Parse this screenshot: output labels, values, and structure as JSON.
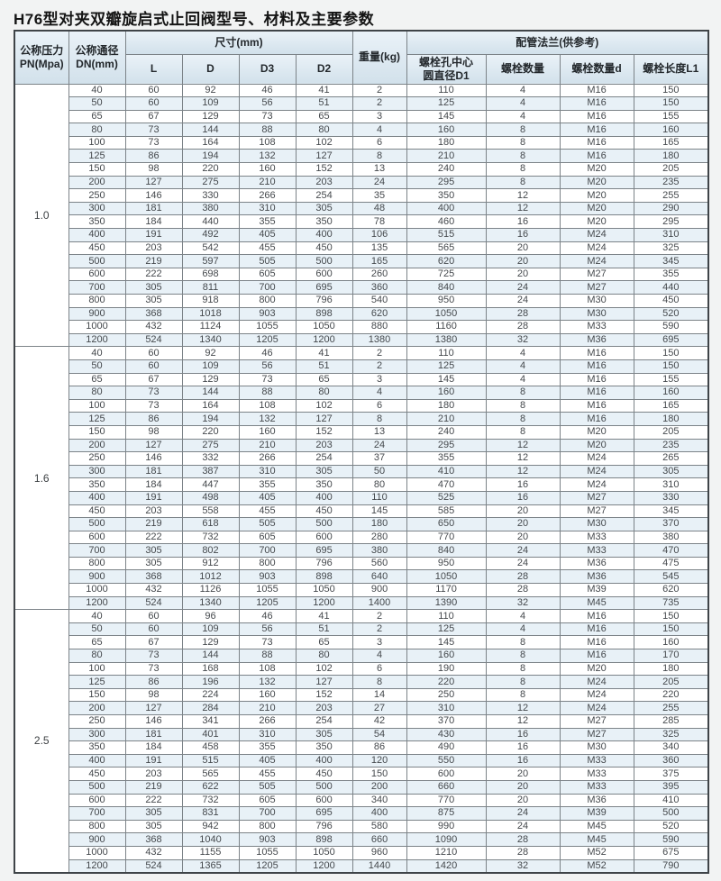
{
  "title": "H76型对夹双瓣旋启式止回阀型号、材料及主要参数",
  "table": {
    "headers": {
      "pn": "公称压力\nPN(Mpa)",
      "dn": "公称通径\nDN(mm)",
      "size_group": "尺寸(mm)",
      "l": "L",
      "d": "D",
      "d3": "D3",
      "d2": "D2",
      "weight": "重量(kg)",
      "flange_group": "配管法兰(供参考)",
      "d1": "螺栓孔中心\n圆直径D1",
      "bolt_count": "螺栓数量",
      "bolt_size": "螺栓数量d",
      "bolt_length": "螺栓长度L1"
    },
    "groups": [
      {
        "pn": "1.0",
        "rows": [
          [
            40,
            60,
            92,
            46,
            41,
            2,
            110,
            4,
            "M16",
            150
          ],
          [
            50,
            60,
            109,
            56,
            51,
            2,
            125,
            4,
            "M16",
            150
          ],
          [
            65,
            67,
            129,
            73,
            65,
            3,
            145,
            4,
            "M16",
            155
          ],
          [
            80,
            73,
            144,
            88,
            80,
            4,
            160,
            8,
            "M16",
            160
          ],
          [
            100,
            73,
            164,
            108,
            102,
            6,
            180,
            8,
            "M16",
            165
          ],
          [
            125,
            86,
            194,
            132,
            127,
            8,
            210,
            8,
            "M16",
            180
          ],
          [
            150,
            98,
            220,
            160,
            152,
            13,
            240,
            8,
            "M20",
            205
          ],
          [
            200,
            127,
            275,
            210,
            203,
            24,
            295,
            8,
            "M20",
            235
          ],
          [
            250,
            146,
            330,
            266,
            254,
            35,
            350,
            12,
            "M20",
            255
          ],
          [
            300,
            181,
            380,
            310,
            305,
            48,
            400,
            12,
            "M20",
            290
          ],
          [
            350,
            184,
            440,
            355,
            350,
            78,
            460,
            16,
            "M20",
            295
          ],
          [
            400,
            191,
            492,
            405,
            400,
            106,
            515,
            16,
            "M24",
            310
          ],
          [
            450,
            203,
            542,
            455,
            450,
            135,
            565,
            20,
            "M24",
            325
          ],
          [
            500,
            219,
            597,
            505,
            500,
            165,
            620,
            20,
            "M24",
            345
          ],
          [
            600,
            222,
            698,
            605,
            600,
            260,
            725,
            20,
            "M27",
            355
          ],
          [
            700,
            305,
            811,
            700,
            695,
            360,
            840,
            24,
            "M27",
            440
          ],
          [
            800,
            305,
            918,
            800,
            796,
            540,
            950,
            24,
            "M30",
            450
          ],
          [
            900,
            368,
            1018,
            903,
            898,
            620,
            1050,
            28,
            "M30",
            520
          ],
          [
            1000,
            432,
            1124,
            1055,
            1050,
            880,
            1160,
            28,
            "M33",
            590
          ],
          [
            1200,
            524,
            1340,
            1205,
            1200,
            1380,
            1380,
            32,
            "M36",
            695
          ]
        ]
      },
      {
        "pn": "1.6",
        "rows": [
          [
            40,
            60,
            92,
            46,
            41,
            2,
            110,
            4,
            "M16",
            150
          ],
          [
            50,
            60,
            109,
            56,
            51,
            2,
            125,
            4,
            "M16",
            150
          ],
          [
            65,
            67,
            129,
            73,
            65,
            3,
            145,
            4,
            "M16",
            155
          ],
          [
            80,
            73,
            144,
            88,
            80,
            4,
            160,
            8,
            "M16",
            160
          ],
          [
            100,
            73,
            164,
            108,
            102,
            6,
            180,
            8,
            "M16",
            165
          ],
          [
            125,
            86,
            194,
            132,
            127,
            8,
            210,
            8,
            "M16",
            180
          ],
          [
            150,
            98,
            220,
            160,
            152,
            13,
            240,
            8,
            "M20",
            205
          ],
          [
            200,
            127,
            275,
            210,
            203,
            24,
            295,
            12,
            "M20",
            235
          ],
          [
            250,
            146,
            332,
            266,
            254,
            37,
            355,
            12,
            "M24",
            265
          ],
          [
            300,
            181,
            387,
            310,
            305,
            50,
            410,
            12,
            "M24",
            305
          ],
          [
            350,
            184,
            447,
            355,
            350,
            80,
            470,
            16,
            "M24",
            310
          ],
          [
            400,
            191,
            498,
            405,
            400,
            110,
            525,
            16,
            "M27",
            330
          ],
          [
            450,
            203,
            558,
            455,
            450,
            145,
            585,
            20,
            "M27",
            345
          ],
          [
            500,
            219,
            618,
            505,
            500,
            180,
            650,
            20,
            "M30",
            370
          ],
          [
            600,
            222,
            732,
            605,
            600,
            280,
            770,
            20,
            "M33",
            380
          ],
          [
            700,
            305,
            802,
            700,
            695,
            380,
            840,
            24,
            "M33",
            470
          ],
          [
            800,
            305,
            912,
            800,
            796,
            560,
            950,
            24,
            "M36",
            475
          ],
          [
            900,
            368,
            1012,
            903,
            898,
            640,
            1050,
            28,
            "M36",
            545
          ],
          [
            1000,
            432,
            1126,
            1055,
            1050,
            900,
            1170,
            28,
            "M39",
            620
          ],
          [
            1200,
            524,
            1340,
            1205,
            1200,
            1400,
            1390,
            32,
            "M45",
            735
          ]
        ]
      },
      {
        "pn": "2.5",
        "rows": [
          [
            40,
            60,
            96,
            46,
            41,
            2,
            110,
            4,
            "M16",
            150
          ],
          [
            50,
            60,
            109,
            56,
            51,
            2,
            125,
            4,
            "M16",
            150
          ],
          [
            65,
            67,
            129,
            73,
            65,
            3,
            145,
            8,
            "M16",
            160
          ],
          [
            80,
            73,
            144,
            88,
            80,
            4,
            160,
            8,
            "M16",
            170
          ],
          [
            100,
            73,
            168,
            108,
            102,
            6,
            190,
            8,
            "M20",
            180
          ],
          [
            125,
            86,
            196,
            132,
            127,
            8,
            220,
            8,
            "M24",
            205
          ],
          [
            150,
            98,
            224,
            160,
            152,
            14,
            250,
            8,
            "M24",
            220
          ],
          [
            200,
            127,
            284,
            210,
            203,
            27,
            310,
            12,
            "M24",
            255
          ],
          [
            250,
            146,
            341,
            266,
            254,
            42,
            370,
            12,
            "M27",
            285
          ],
          [
            300,
            181,
            401,
            310,
            305,
            54,
            430,
            16,
            "M27",
            325
          ],
          [
            350,
            184,
            458,
            355,
            350,
            86,
            490,
            16,
            "M30",
            340
          ],
          [
            400,
            191,
            515,
            405,
            400,
            120,
            550,
            16,
            "M33",
            360
          ],
          [
            450,
            203,
            565,
            455,
            450,
            150,
            600,
            20,
            "M33",
            375
          ],
          [
            500,
            219,
            622,
            505,
            500,
            200,
            660,
            20,
            "M33",
            395
          ],
          [
            600,
            222,
            732,
            605,
            600,
            340,
            770,
            20,
            "M36",
            410
          ],
          [
            700,
            305,
            831,
            700,
            695,
            400,
            875,
            24,
            "M39",
            500
          ],
          [
            800,
            305,
            942,
            800,
            796,
            580,
            990,
            24,
            "M45",
            520
          ],
          [
            900,
            368,
            1040,
            903,
            898,
            660,
            1090,
            28,
            "M45",
            590
          ],
          [
            1000,
            432,
            1155,
            1055,
            1050,
            960,
            1210,
            28,
            "M52",
            675
          ],
          [
            1200,
            524,
            1365,
            1205,
            1200,
            1440,
            1420,
            32,
            "M52",
            790
          ]
        ]
      }
    ]
  }
}
